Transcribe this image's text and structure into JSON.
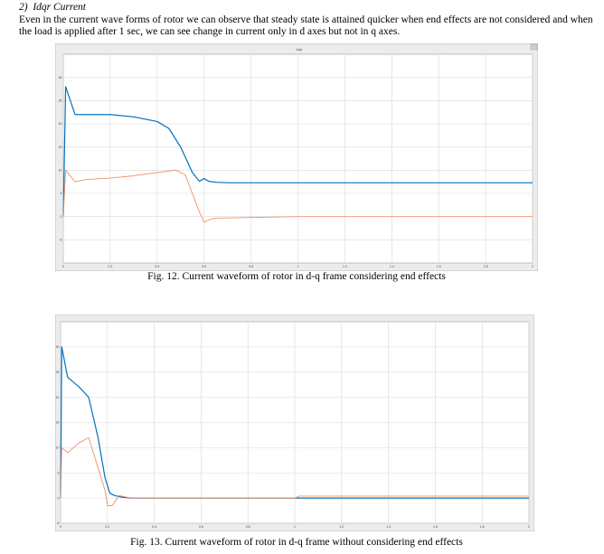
{
  "section": {
    "heading": "2)  Idqr Current",
    "paragraph": "Even in the current wave forms of rotor we can observe that steady state is attained quicker when end effects are not considered and when the load is applied after 1 sec, we can see change in current only in d axes but not in q axes."
  },
  "figures": [
    {
      "caption": "Fig. 12. Current waveform of rotor in d-q frame considering end effects",
      "plot_title": "Idqr"
    },
    {
      "caption": "Fig. 13. Current waveform of rotor in d-q frame without considering end effects",
      "plot_title": ""
    }
  ],
  "colors": {
    "series1": "#0072BD",
    "series2": "#F0906A",
    "grid": "#d9d9d9",
    "frame": "#9a9a9a"
  },
  "chart_data": [
    {
      "type": "line",
      "title": "Idqr",
      "xlim": [
        0,
        2
      ],
      "ylim": [
        -10,
        35
      ],
      "x_ticks": [
        "0",
        "0.2",
        "0.4",
        "0.6",
        "0.8",
        "1",
        "1.2",
        "1.4",
        "1.6",
        "1.8",
        "2"
      ],
      "y_ticks": [
        "-5",
        "0",
        "5",
        "10",
        "15",
        "20",
        "25",
        "30"
      ],
      "grid": true,
      "series": [
        {
          "color": "#0072BD",
          "x": [
            0,
            0.01,
            0.05,
            0.1,
            0.2,
            0.3,
            0.4,
            0.45,
            0.5,
            0.55,
            0.58,
            0.6,
            0.62,
            0.65,
            0.7,
            0.8,
            1.0,
            1.5,
            2.0
          ],
          "y": [
            0,
            28,
            22,
            22,
            22,
            21.5,
            20.5,
            19,
            15,
            9.5,
            7.6,
            8.2,
            7.6,
            7.4,
            7.3,
            7.3,
            7.3,
            7.3,
            7.3
          ]
        },
        {
          "color": "#F0906A",
          "x": [
            0,
            0.01,
            0.05,
            0.1,
            0.2,
            0.3,
            0.4,
            0.48,
            0.52,
            0.55,
            0.58,
            0.6,
            0.63,
            0.66,
            0.7,
            0.8,
            1.0,
            2.0
          ],
          "y": [
            0,
            10,
            7.5,
            8,
            8.3,
            8.8,
            9.5,
            10,
            9,
            5,
            1,
            -1.2,
            -0.5,
            -0.3,
            -0.3,
            -0.2,
            0,
            0
          ]
        }
      ]
    },
    {
      "type": "line",
      "title": "",
      "xlim": [
        0,
        2
      ],
      "ylim": [
        -5,
        35
      ],
      "x_ticks": [
        "0",
        "0.2",
        "0.4",
        "0.6",
        "0.8",
        "1",
        "1.2",
        "1.4",
        "1.6",
        "1.8",
        "2"
      ],
      "y_ticks": [
        "-5",
        "0",
        "5",
        "10",
        "15",
        "20",
        "25",
        "30"
      ],
      "grid": true,
      "series": [
        {
          "color": "#0072BD",
          "x": [
            0,
            0.005,
            0.03,
            0.08,
            0.12,
            0.16,
            0.19,
            0.21,
            0.23,
            0.26,
            0.3,
            0.5,
            1.0,
            1.05,
            2.0
          ],
          "y": [
            0,
            30,
            24,
            22,
            20,
            12,
            4,
            1,
            0.5,
            0.2,
            0,
            0,
            0,
            0,
            0
          ]
        },
        {
          "color": "#F0906A",
          "x": [
            0,
            0.005,
            0.03,
            0.08,
            0.12,
            0.16,
            0.19,
            0.2,
            0.22,
            0.25,
            0.27,
            0.3,
            0.5,
            1.0,
            1.02,
            2.0
          ],
          "y": [
            0,
            10,
            9,
            11,
            12,
            6,
            1.5,
            -1.5,
            -1.5,
            0.5,
            0.3,
            0,
            0,
            0,
            0.4,
            0.4
          ]
        }
      ]
    }
  ]
}
